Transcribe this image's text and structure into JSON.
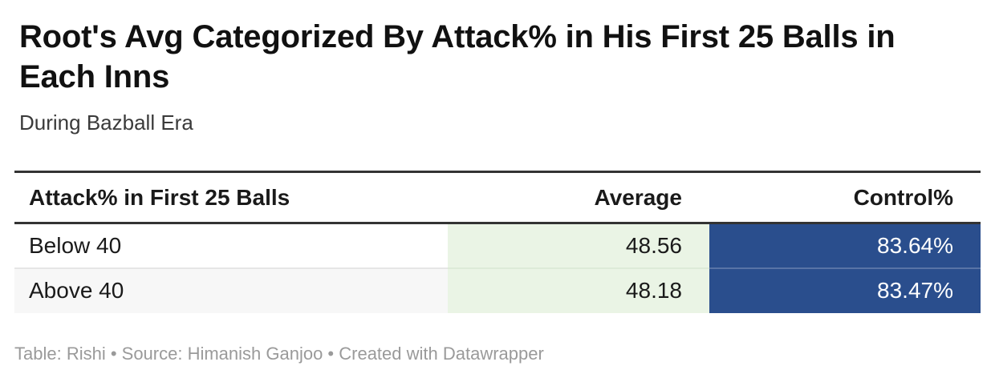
{
  "header": {
    "title": "Root's Avg Categorized By Attack% in His First 25 Balls in Each Inns",
    "subtitle": "During Bazball Era"
  },
  "table": {
    "columns": [
      {
        "label": "Attack% in First 25 Balls"
      },
      {
        "label": "Average"
      },
      {
        "label": "Control%"
      }
    ],
    "rows": [
      {
        "category": "Below 40",
        "average": "48.56",
        "control": "83.64%"
      },
      {
        "category": "Above 40",
        "average": "48.18",
        "control": "83.47%"
      }
    ]
  },
  "footer": {
    "text": "Table: Rishi • Source: Himanish Ganjoo • Created with Datawrapper"
  },
  "colors": {
    "average_column_bg": "#eaf4e5",
    "control_column_bg": "#2a4e8d",
    "control_column_text": "#ffffff",
    "alt_row_bg": "#f7f7f7",
    "header_rule": "#333333",
    "row_divider": "#e6e6e6",
    "footer_text": "#9a9a9a"
  },
  "chart_data": {
    "type": "table",
    "title": "Root's Avg Categorized By Attack% in His First 25 Balls in Each Inns",
    "subtitle": "During Bazball Era",
    "columns": [
      "Attack% in First 25 Balls",
      "Average",
      "Control%"
    ],
    "rows": [
      [
        "Below 40",
        48.56,
        "83.64%"
      ],
      [
        "Above 40",
        48.18,
        "83.47%"
      ]
    ],
    "notes": "Table: Rishi • Source: Himanish Ganjoo • Created with Datawrapper"
  }
}
